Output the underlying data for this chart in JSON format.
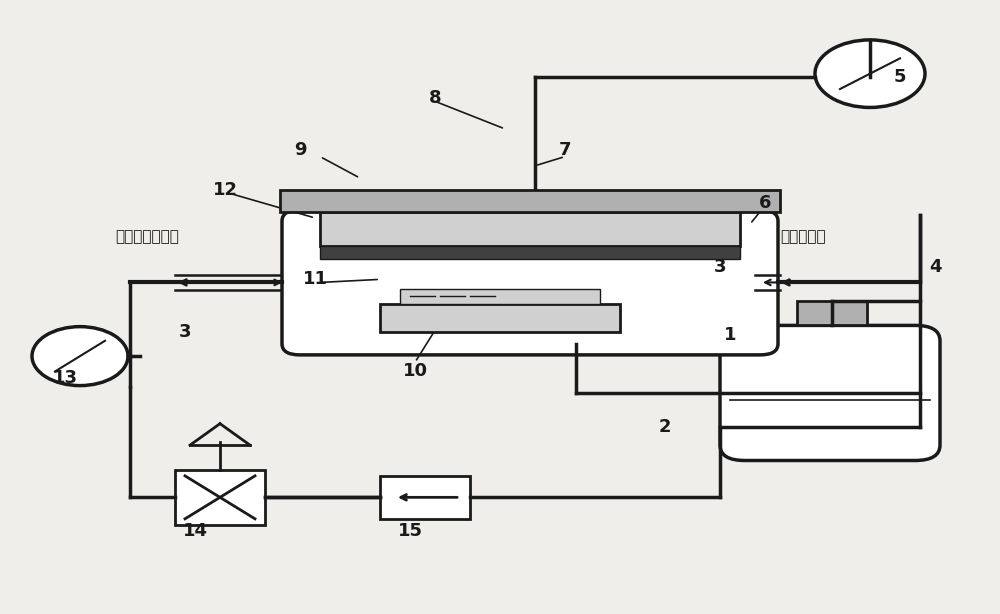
{
  "bg_color": "#f0eeeb",
  "line_color": "#1a1a1a",
  "gray_fill": "#b0b0b0",
  "dark_gray": "#404040",
  "light_gray": "#d0d0d0",
  "white_fill": "#ffffff",
  "labels": {
    "1": [
      0.73,
      0.44,
      "1"
    ],
    "2": [
      0.67,
      0.32,
      "2"
    ],
    "3_right": [
      0.72,
      0.56,
      "3"
    ],
    "3_left": [
      0.18,
      0.46,
      "3"
    ],
    "4": [
      0.93,
      0.56,
      "4"
    ],
    "5": [
      0.88,
      0.88,
      "5"
    ],
    "6": [
      0.74,
      0.68,
      "6"
    ],
    "7": [
      0.56,
      0.74,
      "7"
    ],
    "8": [
      0.44,
      0.83,
      "8"
    ],
    "9": [
      0.32,
      0.74,
      "9"
    ],
    "10": [
      0.42,
      0.42,
      "10"
    ],
    "11": [
      0.33,
      0.54,
      "11"
    ],
    "12": [
      0.24,
      0.68,
      "12"
    ],
    "13": [
      0.07,
      0.42,
      "13"
    ],
    "14": [
      0.2,
      0.17,
      "14"
    ],
    "15": [
      0.42,
      0.17,
      "15"
    ]
  },
  "text_left": "接负压形成组件",
  "text_right": "接供气组件"
}
